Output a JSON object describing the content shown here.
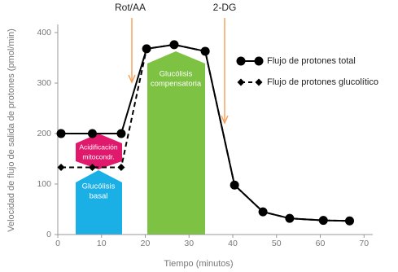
{
  "chart_data": {
    "type": "line",
    "x_label": "Tiempo (minutos)",
    "y_label": "Velocidad de flujo de salida de protones (pmol/min)",
    "xlim": [
      0,
      72
    ],
    "xticks": [
      0,
      10,
      20,
      30,
      40,
      50,
      60,
      70
    ],
    "ylim": [
      0,
      400
    ],
    "yticks": [
      0,
      100,
      200,
      300,
      400
    ],
    "grid": false,
    "legend_position": "upper right",
    "x": [
      0.75,
      7.9,
      14.5,
      20.3,
      26.6,
      33.7,
      40.4,
      46.9,
      53,
      60.7,
      66.7
    ],
    "series": [
      {
        "name": "Flujo de protones total",
        "color": "#000000",
        "marker": "circle",
        "dash": false,
        "values": [
          200,
          200,
          200,
          368,
          376,
          363,
          98,
          45,
          32,
          28,
          27
        ]
      },
      {
        "name": "Flujo de protones glucolítico",
        "color": "#000000",
        "marker": "diamond",
        "dash": true,
        "values": [
          133,
          133,
          133,
          368,
          376,
          363,
          98,
          45,
          32,
          28,
          27
        ]
      }
    ],
    "injections": [
      "Rot/AA",
      "2-DG"
    ],
    "regions": [
      [
        "Acidificación",
        "mitocondr."
      ],
      [
        "Glucólisis",
        "basal"
      ],
      [
        "Glucólisis",
        "compensatoria"
      ]
    ]
  }
}
